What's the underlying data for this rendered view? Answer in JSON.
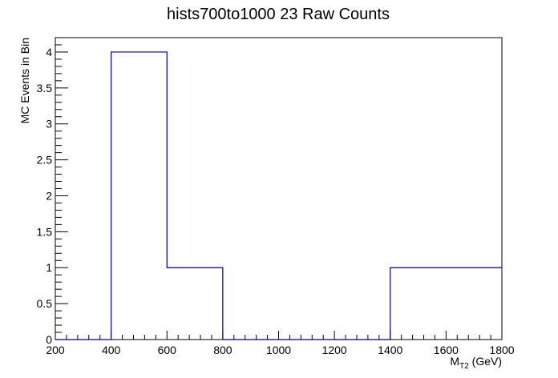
{
  "chart_data": {
    "type": "histogram",
    "title": "hists700to1000 23 Raw Counts",
    "xlabel_main": "M",
    "xlabel_sub": "T2",
    "xlabel_unit": " (GeV)",
    "ylabel": "MC Events in Bin",
    "xlim": [
      200,
      1800
    ],
    "ylim": [
      0,
      4.2
    ],
    "x_ticks": [
      "200",
      "400",
      "600",
      "800",
      "1000",
      "1200",
      "1400",
      "1600",
      "1800"
    ],
    "y_ticks": [
      "0",
      "0.5",
      "1",
      "1.5",
      "2",
      "2.5",
      "3",
      "3.5",
      "4"
    ],
    "bin_edges": [
      200,
      400,
      600,
      800,
      1000,
      1200,
      1400,
      1600,
      1800
    ],
    "values": [
      0,
      4,
      1,
      0,
      0,
      0,
      1,
      1
    ],
    "line_color": "#000080"
  }
}
